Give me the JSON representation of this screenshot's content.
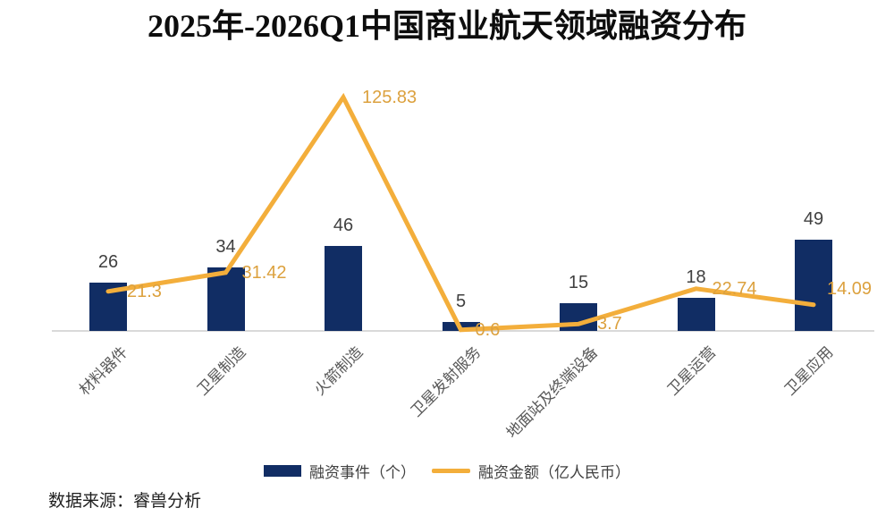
{
  "chart_data": {
    "type": "bar+line",
    "title": "2025年-2026Q1中国商业航天领域融资分布",
    "categories": [
      "材料器件",
      "卫星制造",
      "火箭制造",
      "卫星发射服务",
      "地面站及终端设备",
      "卫星运营",
      "卫星应用"
    ],
    "series": [
      {
        "name": "融资事件（个）",
        "type": "bar",
        "values": [
          26,
          34,
          46,
          5,
          15,
          18,
          49
        ],
        "color": "#112D64",
        "label_color": "#404040"
      },
      {
        "name": "融资金额（亿人民币）",
        "type": "line",
        "values": [
          21.3,
          31.42,
          125.83,
          0.6,
          3.7,
          22.74,
          14.09
        ],
        "color": "#F3AE3B",
        "label_color": "#DCA13E"
      }
    ],
    "data_labels": true,
    "legend_position": "bottom",
    "grid": false,
    "ylim": [
      0,
      139.7
    ],
    "x_axis": {
      "line_color": "#D9D9D9",
      "label_color": "#595959"
    }
  },
  "footer": {
    "source": "数据来源：睿兽分析"
  }
}
